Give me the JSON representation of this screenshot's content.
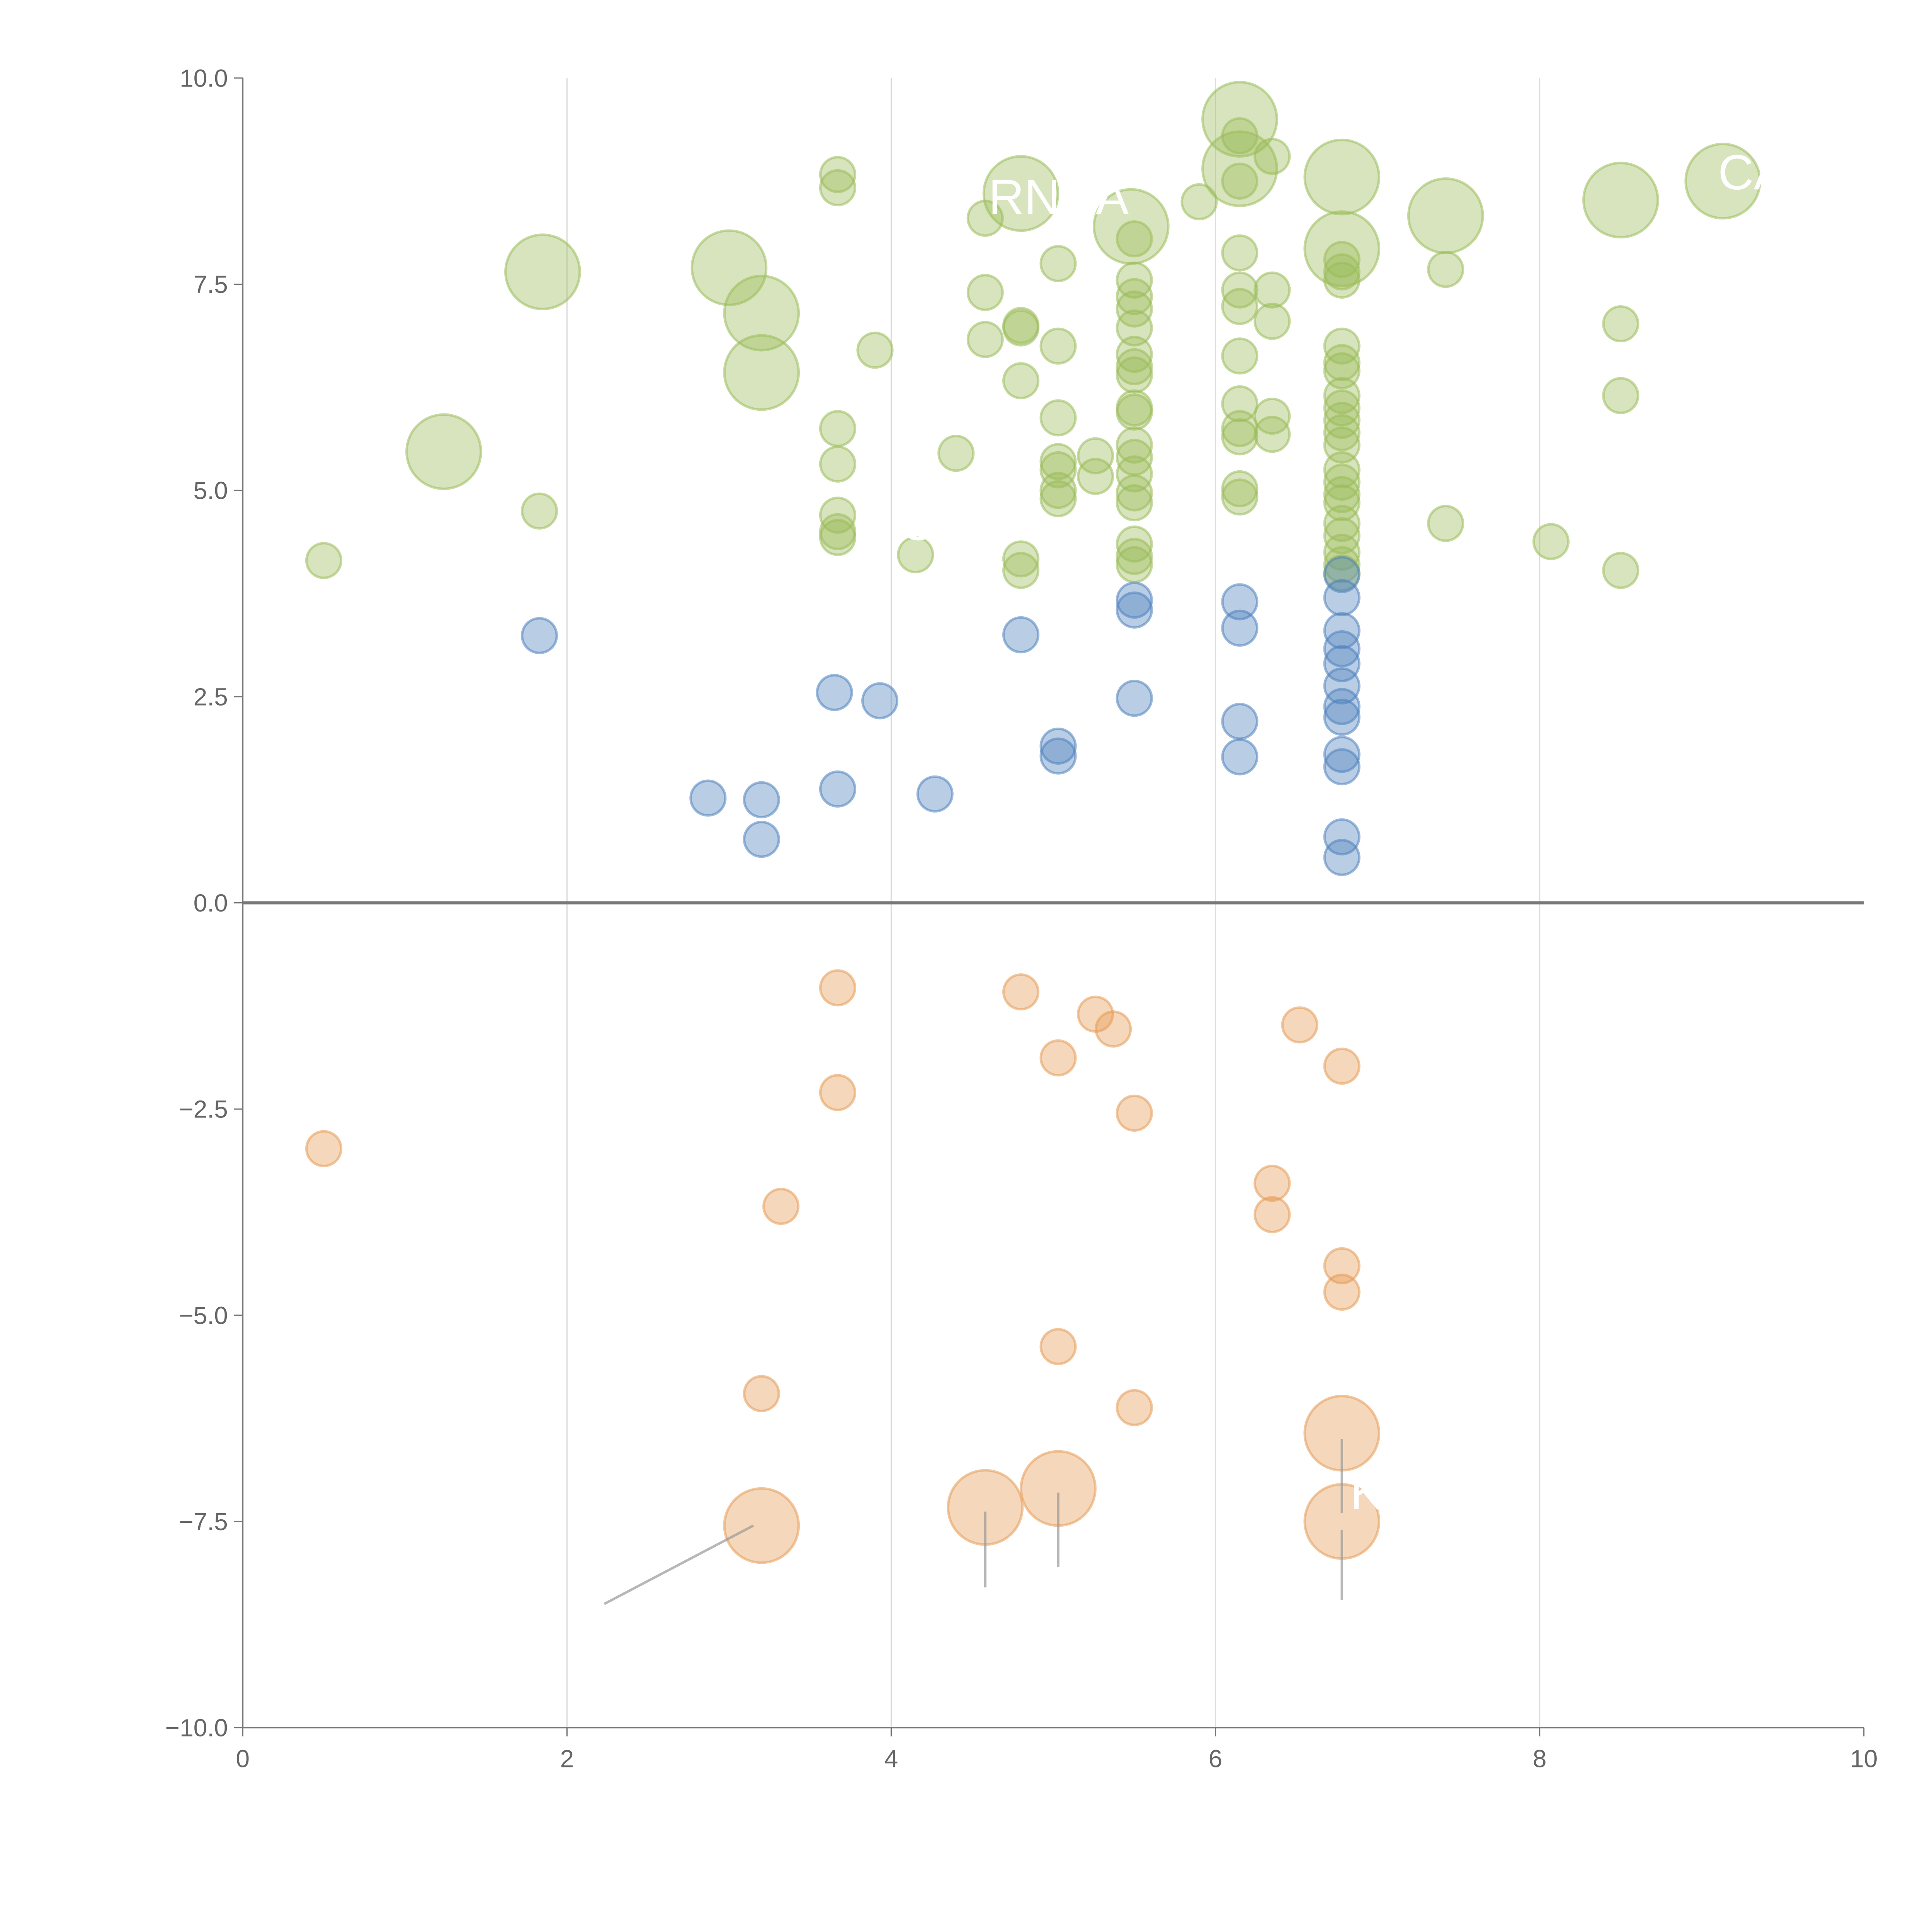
{
  "chart_data": {
    "type": "scatter",
    "title": "",
    "xlabel": "",
    "ylabel": "",
    "xlim": [
      0,
      10
    ],
    "ylim": [
      -10,
      10
    ],
    "xticks": [
      "0",
      "2",
      "4",
      "6",
      "8",
      "10"
    ],
    "yticks": [
      "−10.0",
      "−7.5",
      "−5.0",
      "−2.5",
      "0.0",
      "2.5",
      "5.0",
      "7.5",
      "10.0"
    ],
    "grid": "vertical",
    "colors": {
      "green": "#9bbb59",
      "blue": "#4f81bd",
      "orange": "#e69a55"
    },
    "series": [
      {
        "name": "green",
        "color": "#9bbb59",
        "points": [
          [
            0.5,
            4.15,
            1
          ],
          [
            1.83,
            4.75,
            1
          ],
          [
            1.85,
            7.65,
            2
          ],
          [
            1.24,
            5.47,
            2
          ],
          [
            3.0,
            7.7,
            2
          ],
          [
            3.2,
            7.15,
            2
          ],
          [
            3.2,
            6.43,
            2
          ],
          [
            3.67,
            8.83,
            1
          ],
          [
            3.67,
            8.67,
            1
          ],
          [
            3.67,
            5.75,
            1
          ],
          [
            3.67,
            5.32,
            1
          ],
          [
            3.67,
            4.7,
            1
          ],
          [
            3.67,
            4.5,
            1
          ],
          [
            3.67,
            4.43,
            1
          ],
          [
            3.9,
            6.7,
            1
          ],
          [
            4.15,
            4.22,
            1
          ],
          [
            4.4,
            5.45,
            1
          ],
          [
            4.58,
            7.4,
            1
          ],
          [
            4.58,
            6.83,
            1
          ],
          [
            4.58,
            8.3,
            1
          ],
          [
            4.8,
            8.6,
            2
          ],
          [
            4.8,
            7.0,
            1
          ],
          [
            4.8,
            6.97,
            1
          ],
          [
            4.8,
            6.33,
            1
          ],
          [
            4.8,
            4.17,
            1
          ],
          [
            4.8,
            4.03,
            1
          ],
          [
            5.03,
            7.75,
            1
          ],
          [
            5.03,
            6.75,
            1
          ],
          [
            5.03,
            5.88,
            1
          ],
          [
            5.03,
            5.35,
            1
          ],
          [
            5.03,
            5.25,
            1
          ],
          [
            5.03,
            5.0,
            1
          ],
          [
            5.03,
            4.9,
            1
          ],
          [
            5.26,
            5.42,
            1
          ],
          [
            5.26,
            5.17,
            1
          ],
          [
            5.48,
            8.2,
            2
          ],
          [
            5.5,
            8.05,
            1
          ],
          [
            5.5,
            7.55,
            1
          ],
          [
            5.5,
            7.35,
            1
          ],
          [
            5.5,
            7.2,
            1
          ],
          [
            5.5,
            6.97,
            1
          ],
          [
            5.5,
            6.65,
            1
          ],
          [
            5.5,
            6.5,
            1
          ],
          [
            5.5,
            6.4,
            1
          ],
          [
            5.5,
            6.0,
            1
          ],
          [
            5.5,
            5.95,
            1
          ],
          [
            5.5,
            5.55,
            1
          ],
          [
            5.5,
            5.4,
            1
          ],
          [
            5.5,
            5.2,
            1
          ],
          [
            5.5,
            4.97,
            1
          ],
          [
            5.5,
            4.85,
            1
          ],
          [
            5.5,
            4.35,
            1
          ],
          [
            5.5,
            4.2,
            1
          ],
          [
            5.5,
            4.1,
            1
          ],
          [
            5.9,
            8.5,
            1
          ],
          [
            6.15,
            9.5,
            2
          ],
          [
            6.15,
            9.3,
            1
          ],
          [
            6.15,
            8.9,
            2
          ],
          [
            6.15,
            8.75,
            1
          ],
          [
            6.15,
            7.88,
            1
          ],
          [
            6.15,
            7.43,
            1
          ],
          [
            6.15,
            7.23,
            1
          ],
          [
            6.15,
            6.63,
            1
          ],
          [
            6.15,
            6.05,
            1
          ],
          [
            6.15,
            5.75,
            1
          ],
          [
            6.15,
            5.65,
            1
          ],
          [
            6.15,
            5.02,
            1
          ],
          [
            6.15,
            4.92,
            1
          ],
          [
            6.35,
            9.05,
            1
          ],
          [
            6.35,
            7.43,
            1
          ],
          [
            6.35,
            7.05,
            1
          ],
          [
            6.35,
            5.9,
            1
          ],
          [
            6.35,
            5.68,
            1
          ],
          [
            6.78,
            8.8,
            2
          ],
          [
            6.78,
            7.93,
            2
          ],
          [
            6.78,
            7.8,
            1
          ],
          [
            6.78,
            7.65,
            1
          ],
          [
            6.78,
            7.55,
            1
          ],
          [
            6.78,
            6.75,
            1
          ],
          [
            6.78,
            6.55,
            1
          ],
          [
            6.78,
            6.45,
            1
          ],
          [
            6.78,
            6.15,
            1
          ],
          [
            6.78,
            6.0,
            1
          ],
          [
            6.78,
            5.85,
            1
          ],
          [
            6.78,
            5.7,
            1
          ],
          [
            6.78,
            5.55,
            1
          ],
          [
            6.78,
            5.25,
            1
          ],
          [
            6.78,
            5.1,
            1
          ],
          [
            6.78,
            4.95,
            1
          ],
          [
            6.78,
            4.85,
            1
          ],
          [
            6.78,
            4.6,
            1
          ],
          [
            6.78,
            4.45,
            1
          ],
          [
            6.78,
            4.25,
            1
          ],
          [
            6.78,
            4.1,
            1
          ],
          [
            6.78,
            4.0,
            1
          ],
          [
            7.42,
            8.33,
            2
          ],
          [
            7.42,
            7.68,
            1
          ],
          [
            7.42,
            4.6,
            1
          ],
          [
            8.07,
            4.38,
            1
          ],
          [
            8.5,
            8.52,
            2
          ],
          [
            8.5,
            7.02,
            1
          ],
          [
            8.5,
            6.15,
            1
          ],
          [
            8.5,
            4.03,
            1
          ],
          [
            9.13,
            8.75,
            2
          ]
        ]
      },
      {
        "name": "blue",
        "color": "#4f81bd",
        "points": [
          [
            1.83,
            3.24,
            1
          ],
          [
            2.87,
            1.27,
            1
          ],
          [
            3.2,
            1.25,
            1
          ],
          [
            3.2,
            0.77,
            1
          ],
          [
            3.65,
            2.55,
            1
          ],
          [
            3.67,
            1.38,
            1
          ],
          [
            3.93,
            2.45,
            1
          ],
          [
            4.27,
            1.32,
            1
          ],
          [
            4.8,
            3.25,
            1
          ],
          [
            5.03,
            1.9,
            1
          ],
          [
            5.03,
            1.78,
            1
          ],
          [
            5.5,
            3.67,
            1
          ],
          [
            5.5,
            3.55,
            1
          ],
          [
            5.5,
            2.48,
            1
          ],
          [
            6.15,
            3.65,
            1
          ],
          [
            6.15,
            3.33,
            1
          ],
          [
            6.15,
            2.2,
            1
          ],
          [
            6.15,
            1.77,
            1
          ],
          [
            6.78,
            3.98,
            1
          ],
          [
            6.78,
            3.7,
            1
          ],
          [
            6.78,
            3.3,
            1
          ],
          [
            6.78,
            3.08,
            1
          ],
          [
            6.78,
            2.9,
            1
          ],
          [
            6.78,
            2.63,
            1
          ],
          [
            6.78,
            2.38,
            1
          ],
          [
            6.78,
            2.25,
            1
          ],
          [
            6.78,
            1.8,
            1
          ],
          [
            6.78,
            1.65,
            1
          ],
          [
            6.78,
            0.8,
            1
          ],
          [
            6.78,
            0.55,
            1
          ]
        ]
      },
      {
        "name": "orange",
        "color": "#e69a55",
        "points": [
          [
            0.5,
            -2.98,
            1
          ],
          [
            3.32,
            -3.68,
            1
          ],
          [
            3.2,
            -5.95,
            1
          ],
          [
            3.67,
            -1.03,
            1
          ],
          [
            3.67,
            -2.3,
            1
          ],
          [
            4.8,
            -1.08,
            1
          ],
          [
            5.03,
            -1.88,
            1
          ],
          [
            5.26,
            -1.35,
            1
          ],
          [
            5.37,
            -1.53,
            1
          ],
          [
            5.5,
            -2.55,
            1
          ],
          [
            6.52,
            -1.48,
            1
          ],
          [
            6.35,
            -3.4,
            1
          ],
          [
            6.35,
            -3.78,
            1
          ],
          [
            6.78,
            -1.98,
            1
          ],
          [
            6.78,
            -4.4,
            1
          ],
          [
            6.78,
            -4.72,
            1
          ],
          [
            5.03,
            -5.38,
            1
          ],
          [
            5.5,
            -6.12,
            1
          ],
          [
            6.78,
            -6.43,
            2
          ],
          [
            3.2,
            -7.55,
            2
          ],
          [
            4.58,
            -7.33,
            2
          ],
          [
            5.03,
            -7.1,
            2
          ],
          [
            6.78,
            -7.5,
            2
          ]
        ]
      }
    ],
    "leader_lines": [
      [
        [
          3.15,
          -7.55
        ],
        [
          2.23,
          -8.5
        ]
      ],
      [
        [
          4.58,
          -7.38
        ],
        [
          4.58,
          -8.3
        ]
      ],
      [
        [
          5.03,
          -7.15
        ],
        [
          5.03,
          -8.05
        ]
      ],
      [
        [
          6.78,
          -6.5
        ],
        [
          6.78,
          -7.4
        ]
      ],
      [
        [
          6.78,
          -7.6
        ],
        [
          6.78,
          -8.45
        ]
      ]
    ],
    "annotations": [
      {
        "text": "RNDA",
        "x": 4.6,
        "y": 8.35
      },
      {
        "text": "CA",
        "x": 9.1,
        "y": 8.65
      },
      {
        "text": "K",
        "x": 6.83,
        "y": -7.35
      },
      {
        "text": "C",
        "x": 4.05,
        "y": 4.4
      }
    ]
  }
}
